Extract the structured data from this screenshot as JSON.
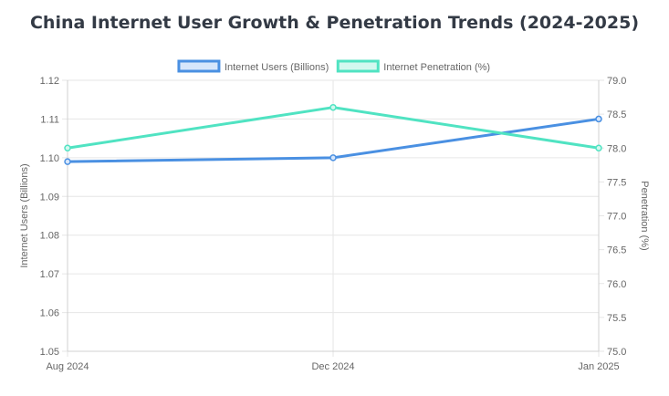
{
  "chart_data": {
    "type": "line",
    "title": "China Internet User Growth & Penetration Trends (2024-2025)",
    "categories": [
      "Aug 2024",
      "Dec 2024",
      "Jan 2025"
    ],
    "series": [
      {
        "name": "Internet Users (Billions)",
        "values": [
          1.099,
          1.1,
          1.11
        ],
        "axis": "left",
        "color": "#4a90e2",
        "fill": "#d6e6fb"
      },
      {
        "name": "Internet Penetration (%)",
        "values": [
          78.0,
          78.6,
          78.0
        ],
        "axis": "right",
        "color": "#50e3c2",
        "fill": "#d3f8ef"
      }
    ],
    "y_left": {
      "label": "Internet Users (Billions)",
      "min": 1.05,
      "max": 1.12,
      "ticks": [
        "1.05",
        "1.06",
        "1.07",
        "1.08",
        "1.09",
        "1.10",
        "1.11",
        "1.12"
      ]
    },
    "y_right": {
      "label": "Penetration (%)",
      "min": 75.0,
      "max": 79.0,
      "ticks": [
        "75.0",
        "75.5",
        "76.0",
        "76.5",
        "77.0",
        "77.5",
        "78.0",
        "78.5",
        "79.0"
      ]
    },
    "grid": true,
    "legend_position": "top"
  }
}
